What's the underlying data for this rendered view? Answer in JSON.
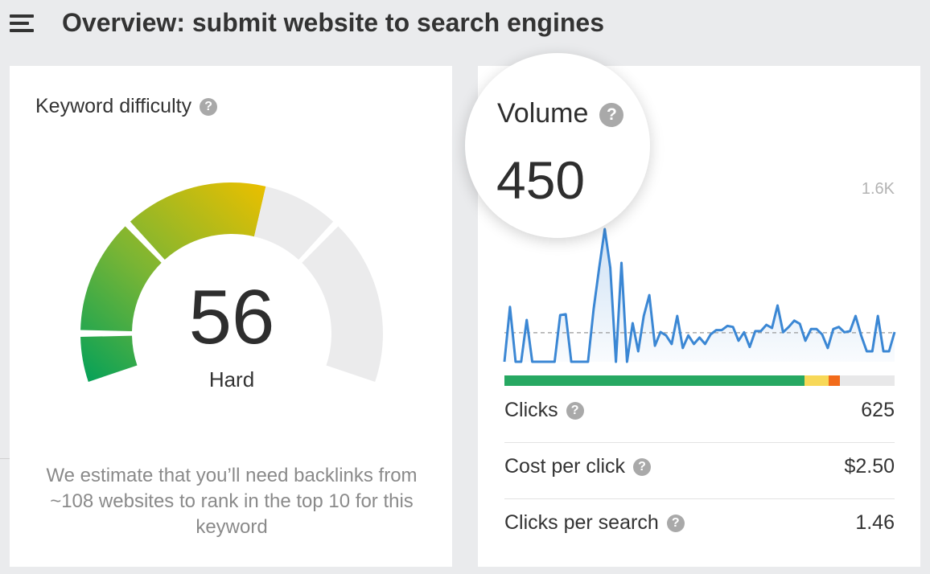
{
  "header": {
    "title": "Overview: submit website to search engines",
    "menu_icon": "hamburger-menu-icon"
  },
  "keyword_difficulty": {
    "label": "Keyword difficulty",
    "help_glyph": "?",
    "value": "56",
    "score_percent": 56,
    "rating": "Hard",
    "note": "We estimate that you’ll need backlinks from ~108 websites to rank in the top 10 for this keyword",
    "colors": {
      "start": "#0aa257",
      "mid": "#7ab534",
      "end": "#e8bf00",
      "empty": "#ebebec"
    }
  },
  "volume": {
    "label": "Volume",
    "help_glyph": "?",
    "value": "450",
    "chart_max_label": "1.6K",
    "chart_data": {
      "type": "area",
      "ylim": [
        0,
        1600
      ],
      "line_color": "#3b87d4",
      "values": [
        0,
        520,
        0,
        0,
        396,
        0,
        0,
        0,
        0,
        0,
        442,
        450,
        0,
        0,
        0,
        0,
        500,
        891,
        1257,
        891,
        0,
        937,
        0,
        366,
        99,
        434,
        632,
        152,
        282,
        250,
        168,
        434,
        130,
        250,
        168,
        229,
        168,
        260,
        300,
        300,
        340,
        330,
        200,
        280,
        140,
        290,
        290,
        350,
        320,
        533,
        280,
        330,
        390,
        360,
        200,
        310,
        310,
        260,
        130,
        310,
        330,
        280,
        290,
        434,
        250,
        99,
        99,
        434,
        99,
        99,
        282
      ]
    },
    "distribution": [
      {
        "share": 77,
        "color": "#27a862"
      },
      {
        "share": 6,
        "color": "#f7d858"
      },
      {
        "share": 3,
        "color": "#f26b1a"
      },
      {
        "share": 14,
        "color": "#e8e8e9"
      }
    ],
    "metrics": [
      {
        "label": "Clicks",
        "value": "625"
      },
      {
        "label": "Cost per click",
        "value": "$2.50"
      },
      {
        "label": "Clicks per search",
        "value": "1.46"
      }
    ]
  }
}
